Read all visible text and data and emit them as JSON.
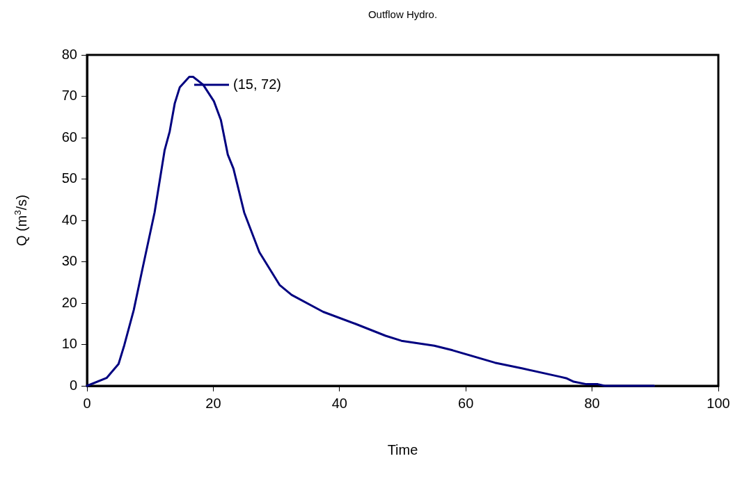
{
  "chart_data": {
    "type": "line",
    "title": "Outflow Hydro.",
    "xlabel": "Time",
    "ylabel": "Q (m$^{3}$/s)",
    "series": [
      {
        "color": "#000080",
        "x": [
          0,
          3.1,
          5.0,
          5.9,
          7.4,
          8.8,
          10.7,
          12.3,
          13.1,
          13.9,
          14.7,
          16.2,
          16.8,
          18.4,
          20.1,
          21.2,
          22.3,
          23.2,
          24.9,
          27.3,
          30.5,
          32.4,
          37.4,
          42.5,
          47.3,
          49.8,
          55.0,
          57.9,
          64.6,
          69.0,
          74.9,
          76.0,
          77.1,
          79.1,
          80.9,
          82.0,
          89.8
        ],
        "values": [
          0,
          1.9,
          5.3,
          9.8,
          18.3,
          28.4,
          41.9,
          57.0,
          61.5,
          68.3,
          72.2,
          74.7,
          74.7,
          72.8,
          68.8,
          64.3,
          55.9,
          52.5,
          41.9,
          32.3,
          24.4,
          22.0,
          17.9,
          15.0,
          12.1,
          10.9,
          9.7,
          8.6,
          5.6,
          4.2,
          2.2,
          1.8,
          1.0,
          0.4,
          0.4,
          0,
          0
        ]
      }
    ],
    "xlim": [
      0,
      100
    ],
    "xticks": [
      0,
      20,
      40,
      60,
      80,
      100
    ],
    "ylim": [
      0,
      80
    ],
    "yticks": [
      0,
      10,
      20,
      30,
      40,
      50,
      60,
      70,
      80
    ],
    "grid": false,
    "legend": false,
    "marker": "none",
    "line_style": "solid",
    "annotations": [
      "(15, 72)"
    ]
  }
}
